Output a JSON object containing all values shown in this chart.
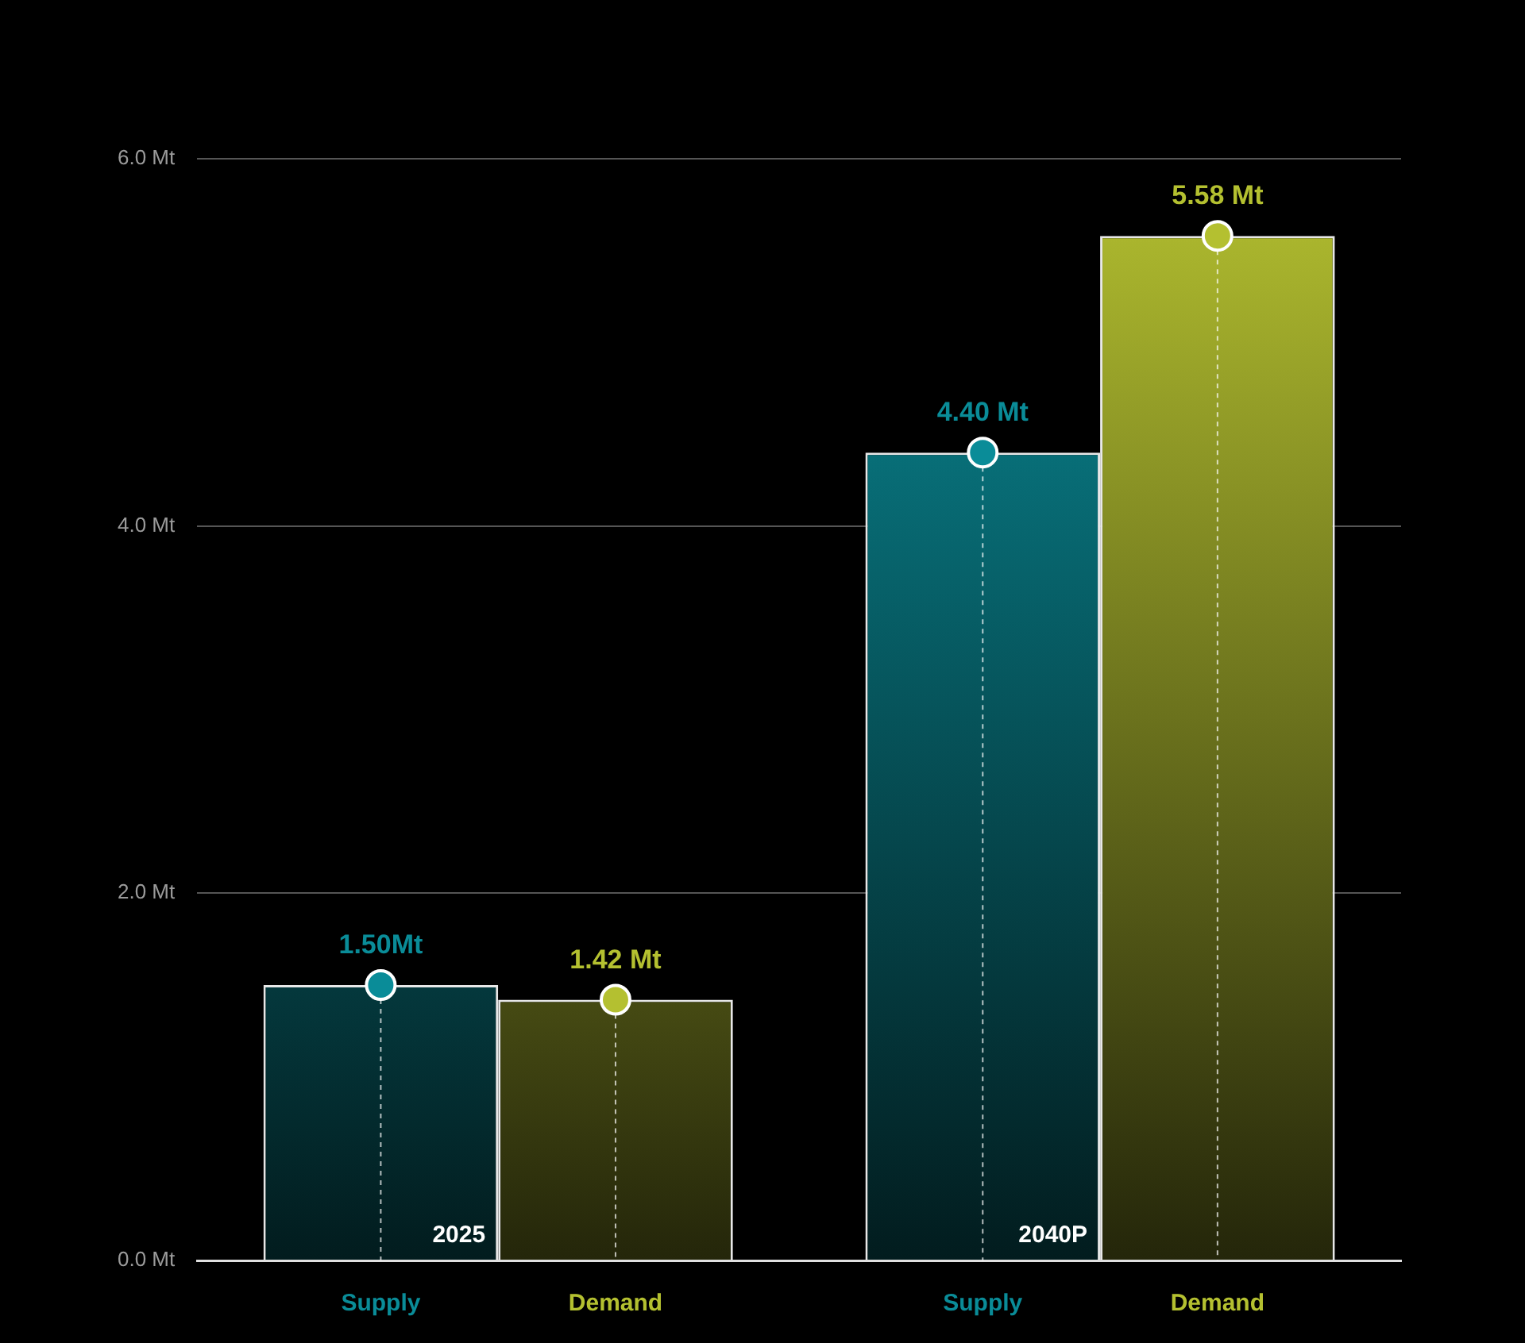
{
  "chart_data": {
    "type": "bar",
    "categories": [
      "2025",
      "2040P"
    ],
    "series": [
      {
        "name": "Supply",
        "color": "#0a8c98",
        "values": [
          1.5,
          4.4
        ],
        "value_labels": [
          "1.50Mt",
          "4.40 Mt"
        ]
      },
      {
        "name": "Demand",
        "color": "#b4c030",
        "values": [
          1.42,
          5.58
        ],
        "value_labels": [
          "1.42 Mt",
          "5.58 Mt"
        ]
      },
      {
        "type": "scatter",
        "color": "#0a8c98",
        "values": [
          1.5,
          4.4
        ]
      },
      {
        "type": "scatter",
        "color": "#b4c030",
        "values": [
          1.42,
          5.58
        ]
      }
    ],
    "ylim": [
      0,
      6
    ],
    "yticks": [
      {
        "value": 0,
        "label": "0.0 Mt"
      },
      {
        "value": 2,
        "label": "2.0 Mt"
      },
      {
        "value": 4,
        "label": "4.0 Mt"
      },
      {
        "value": 6,
        "label": "6.0 Mt"
      }
    ],
    "grid": "y",
    "legend": false,
    "marker": "circle"
  }
}
